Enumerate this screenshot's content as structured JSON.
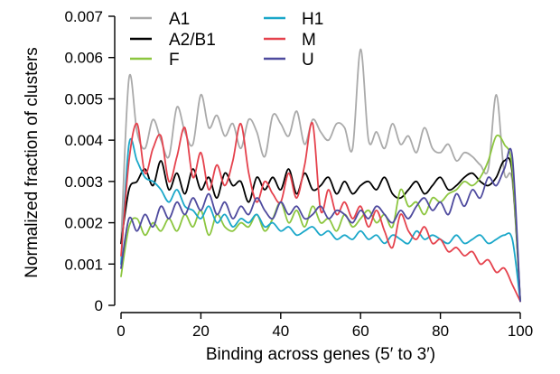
{
  "chart_data": {
    "type": "line",
    "xlabel": "Binding across genes (5′ to 3′)",
    "ylabel": "Normalized fraction of clusters",
    "xlim": [
      0,
      100
    ],
    "ylim": [
      0,
      0.007
    ],
    "xticks": [
      0,
      20,
      40,
      60,
      80,
      100
    ],
    "xtick_labels": [
      "0",
      "20",
      "40",
      "60",
      "80",
      "100"
    ],
    "yticks": [
      0,
      0.001,
      0.002,
      0.003,
      0.004,
      0.005,
      0.006,
      0.007
    ],
    "ytick_labels": [
      "0",
      "0.001",
      "0.002",
      "0.003",
      "0.004",
      "0.005",
      "0.006",
      "0.007"
    ],
    "grid": false,
    "legend_position": "top-left",
    "x": [
      0,
      2,
      4,
      6,
      8,
      10,
      12,
      14,
      16,
      18,
      20,
      22,
      24,
      26,
      28,
      30,
      32,
      34,
      36,
      38,
      40,
      42,
      44,
      46,
      48,
      50,
      52,
      54,
      56,
      58,
      60,
      62,
      64,
      66,
      68,
      70,
      72,
      74,
      76,
      78,
      80,
      82,
      84,
      86,
      88,
      90,
      92,
      94,
      96,
      98,
      100
    ],
    "series": [
      {
        "name": "A1",
        "color": "#aaaaaa",
        "values": [
          0.0015,
          0.0055,
          0.0042,
          0.0038,
          0.0045,
          0.004,
          0.0036,
          0.0048,
          0.0042,
          0.0039,
          0.0051,
          0.0043,
          0.0046,
          0.0041,
          0.0044,
          0.0038,
          0.0045,
          0.0042,
          0.0036,
          0.0046,
          0.0044,
          0.0041,
          0.0047,
          0.0039,
          0.0045,
          0.0042,
          0.004,
          0.0044,
          0.0043,
          0.0038,
          0.0062,
          0.004,
          0.0042,
          0.0038,
          0.0044,
          0.0039,
          0.0041,
          0.0037,
          0.0043,
          0.0038,
          0.0037,
          0.0039,
          0.0035,
          0.0037,
          0.0036,
          0.0034,
          0.0033,
          0.0051,
          0.0032,
          0.003,
          0.0001
        ]
      },
      {
        "name": "A2/B1",
        "color": "#000000",
        "values": [
          0.0015,
          0.0028,
          0.003,
          0.0033,
          0.0029,
          0.0035,
          0.0028,
          0.0032,
          0.0027,
          0.0033,
          0.0028,
          0.0031,
          0.0026,
          0.0032,
          0.0029,
          0.003,
          0.0025,
          0.0031,
          0.0028,
          0.0031,
          0.0028,
          0.0033,
          0.0027,
          0.0032,
          0.0028,
          0.0029,
          0.0031,
          0.0027,
          0.003,
          0.0027,
          0.0029,
          0.003,
          0.0028,
          0.0031,
          0.0027,
          0.0026,
          0.0028,
          0.003,
          0.0027,
          0.0029,
          0.0031,
          0.0028,
          0.0029,
          0.0031,
          0.0032,
          0.003,
          0.0029,
          0.0031,
          0.0035,
          0.0032,
          0.0001
        ]
      },
      {
        "name": "F",
        "color": "#8cc63f",
        "values": [
          0.0007,
          0.0019,
          0.0021,
          0.0017,
          0.002,
          0.0018,
          0.0021,
          0.0018,
          0.0022,
          0.0019,
          0.0023,
          0.0017,
          0.0022,
          0.0019,
          0.0018,
          0.002,
          0.0019,
          0.0022,
          0.0018,
          0.0021,
          0.0025,
          0.002,
          0.0023,
          0.0019,
          0.0024,
          0.002,
          0.0021,
          0.0018,
          0.0022,
          0.0019,
          0.0021,
          0.0023,
          0.002,
          0.0022,
          0.0019,
          0.0028,
          0.0024,
          0.0025,
          0.0022,
          0.0026,
          0.0025,
          0.0027,
          0.0028,
          0.003,
          0.0029,
          0.0031,
          0.0035,
          0.0041,
          0.0039,
          0.0033,
          0.0001
        ]
      },
      {
        "name": "H1",
        "color": "#1aa7c9",
        "values": [
          0.001,
          0.0039,
          0.0035,
          0.0031,
          0.003,
          0.0028,
          0.0025,
          0.0028,
          0.0024,
          0.0023,
          0.0021,
          0.0024,
          0.002,
          0.0022,
          0.0019,
          0.0021,
          0.002,
          0.0022,
          0.0019,
          0.002,
          0.0018,
          0.0019,
          0.0017,
          0.0018,
          0.0019,
          0.0017,
          0.0018,
          0.0016,
          0.0017,
          0.0016,
          0.0018,
          0.0016,
          0.0017,
          0.0015,
          0.0017,
          0.0016,
          0.0015,
          0.0018,
          0.0016,
          0.0017,
          0.0016,
          0.0015,
          0.0017,
          0.0015,
          0.0016,
          0.0017,
          0.0015,
          0.0016,
          0.0017,
          0.0016,
          0.0001
        ]
      },
      {
        "name": "M",
        "color": "#e5424d",
        "values": [
          0.0012,
          0.0035,
          0.0044,
          0.0032,
          0.0038,
          0.0041,
          0.003,
          0.0036,
          0.0043,
          0.0031,
          0.0037,
          0.0028,
          0.0034,
          0.0029,
          0.0035,
          0.0044,
          0.0032,
          0.0025,
          0.003,
          0.0027,
          0.0025,
          0.0032,
          0.0026,
          0.0034,
          0.0044,
          0.0023,
          0.0028,
          0.0022,
          0.0025,
          0.0021,
          0.0024,
          0.0019,
          0.0023,
          0.0018,
          0.0014,
          0.0022,
          0.0018,
          0.0016,
          0.0019,
          0.0015,
          0.0016,
          0.0013,
          0.0014,
          0.0012,
          0.0013,
          0.001,
          0.0011,
          0.0008,
          0.0009,
          0.0005,
          0.0001
        ]
      },
      {
        "name": "U",
        "color": "#4e4a9e",
        "values": [
          0.0009,
          0.0021,
          0.0018,
          0.0022,
          0.0019,
          0.0024,
          0.0021,
          0.0025,
          0.0022,
          0.0026,
          0.0023,
          0.0027,
          0.0022,
          0.0025,
          0.0021,
          0.0024,
          0.0022,
          0.0026,
          0.0023,
          0.0021,
          0.0025,
          0.0022,
          0.0024,
          0.0021,
          0.0022,
          0.0024,
          0.0021,
          0.0023,
          0.0022,
          0.002,
          0.0023,
          0.0021,
          0.0024,
          0.0022,
          0.002,
          0.0023,
          0.0021,
          0.0024,
          0.0026,
          0.0023,
          0.0025,
          0.0022,
          0.0027,
          0.0024,
          0.0028,
          0.0026,
          0.0031,
          0.0029,
          0.0033,
          0.0036,
          0.0001
        ]
      }
    ]
  }
}
